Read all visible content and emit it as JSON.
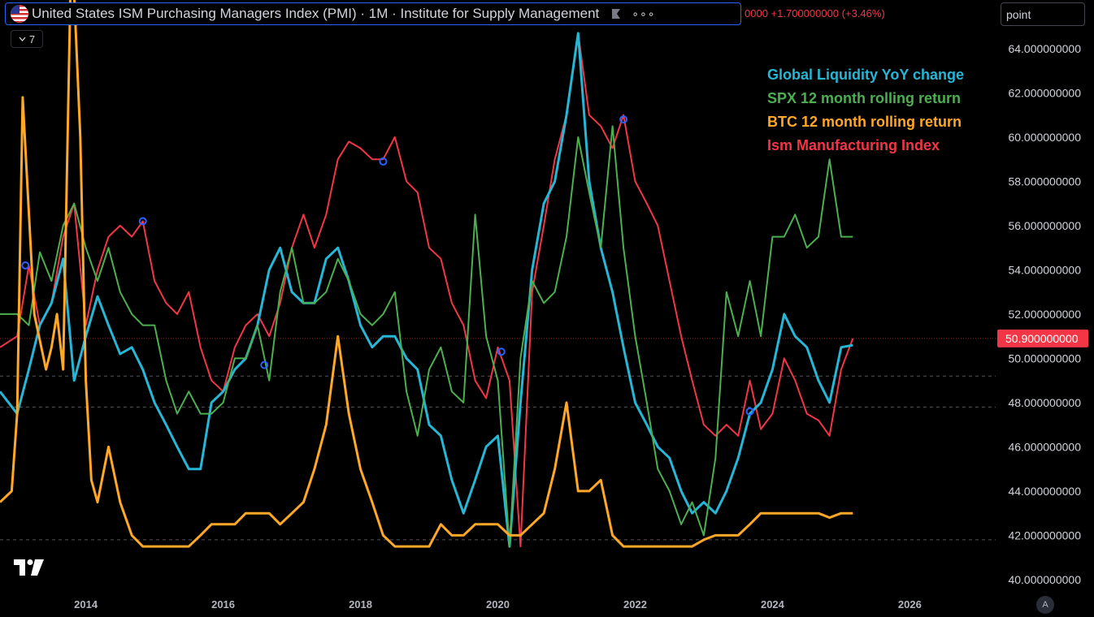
{
  "header": {
    "title": "United States ISM Purchasing Managers Index (PMI) · 1M · Institute for Supply Management",
    "more_label": "∘∘∘",
    "change_text": "0000 +1.700000000 (+3.46%)"
  },
  "search": {
    "value": "point"
  },
  "indicator_toggle": {
    "count": "7"
  },
  "price_tag": "50.900000000",
  "auto_label": "A",
  "colors": {
    "liquidity": "#26b6d6",
    "spx": "#4caf50",
    "btc": "#ffa726",
    "ism": "#f23645",
    "text": "#d1d4dc",
    "accent": "#2962ff"
  },
  "legend": [
    {
      "label": "Global Liquidity YoY change",
      "color": "#26b6d6"
    },
    {
      "label": "SPX 12 month rolling return",
      "color": "#4caf50"
    },
    {
      "label": "BTC 12 month rolling return",
      "color": "#ffa726"
    },
    {
      "label": "Ism Manufacturing Index",
      "color": "#f23645"
    }
  ],
  "chart_data": {
    "type": "line",
    "title": "United States ISM Purchasing Managers Index (PMI) · 1M · Institute for Supply Management",
    "ylim": [
      39.3,
      66.2
    ],
    "xlim": [
      2012.75,
      2027.25
    ],
    "x_ticks": [
      2014,
      2016,
      2018,
      2020,
      2022,
      2024,
      2026
    ],
    "x_tick_labels": [
      "2014",
      "2016",
      "2018",
      "2020",
      "2022",
      "2024",
      "2026"
    ],
    "y_ticks": [
      40,
      42,
      44,
      46,
      48,
      50,
      52,
      54,
      56,
      58,
      60,
      62,
      64
    ],
    "y_tick_labels": [
      "40.000000000",
      "42.000000000",
      "44.000000000",
      "46.000000000",
      "48.000000000",
      "50.000000000",
      "52.000000000",
      "54.000000000",
      "56.000000000",
      "58.000000000",
      "60.000000000",
      "62.000000000",
      "64.000000000"
    ],
    "last_value": 50.9,
    "reference_lines": [
      49.2,
      47.8,
      41.8
    ],
    "series": [
      {
        "name": "Ism Manufacturing Index",
        "color": "#f23645",
        "x": [
          2012.75,
          2013.0,
          2013.17,
          2013.33,
          2013.5,
          2013.67,
          2013.83,
          2014.0,
          2014.17,
          2014.33,
          2014.5,
          2014.67,
          2014.83,
          2015.0,
          2015.17,
          2015.33,
          2015.5,
          2015.67,
          2015.83,
          2016.0,
          2016.17,
          2016.33,
          2016.5,
          2016.67,
          2016.83,
          2017.0,
          2017.17,
          2017.33,
          2017.5,
          2017.67,
          2017.83,
          2018.0,
          2018.17,
          2018.33,
          2018.5,
          2018.67,
          2018.83,
          2019.0,
          2019.17,
          2019.33,
          2019.5,
          2019.67,
          2019.83,
          2020.0,
          2020.17,
          2020.33,
          2020.5,
          2020.67,
          2020.83,
          2021.0,
          2021.17,
          2021.33,
          2021.5,
          2021.67,
          2021.83,
          2022.0,
          2022.17,
          2022.33,
          2022.5,
          2022.67,
          2022.83,
          2023.0,
          2023.17,
          2023.33,
          2023.5,
          2023.67,
          2023.83,
          2024.0,
          2024.17,
          2024.33,
          2024.5,
          2024.67,
          2024.83,
          2025.0,
          2025.17
        ],
        "values": [
          50.5,
          51.0,
          54.2,
          51.5,
          52.5,
          55.5,
          57.0,
          51.5,
          54.0,
          55.5,
          56.0,
          55.5,
          56.2,
          53.5,
          52.5,
          52.0,
          53.0,
          50.5,
          49.0,
          48.5,
          50.5,
          51.5,
          52.0,
          51.0,
          52.5,
          55.0,
          56.5,
          55.0,
          56.5,
          59.0,
          59.8,
          59.5,
          59.0,
          59.0,
          60.0,
          58.0,
          57.5,
          55.0,
          54.5,
          52.5,
          51.5,
          49.0,
          48.2,
          50.5,
          49.0,
          41.5,
          53.0,
          56.0,
          59.0,
          61.0,
          64.7,
          61.0,
          60.5,
          59.5,
          61.0,
          58.0,
          57.0,
          56.0,
          53.5,
          51.0,
          49.0,
          47.0,
          46.5,
          47.0,
          46.5,
          49.0,
          46.8,
          47.5,
          50.0,
          49.0,
          47.5,
          47.2,
          46.5,
          49.5,
          50.9
        ]
      },
      {
        "name": "Global Liquidity YoY change",
        "color": "#26b6d6",
        "x": [
          2012.75,
          2013.0,
          2013.17,
          2013.33,
          2013.5,
          2013.67,
          2013.83,
          2014.0,
          2014.17,
          2014.33,
          2014.5,
          2014.67,
          2014.83,
          2015.0,
          2015.17,
          2015.33,
          2015.5,
          2015.67,
          2015.83,
          2016.0,
          2016.17,
          2016.33,
          2016.5,
          2016.67,
          2016.83,
          2017.0,
          2017.17,
          2017.33,
          2017.5,
          2017.67,
          2017.83,
          2018.0,
          2018.17,
          2018.33,
          2018.5,
          2018.67,
          2018.83,
          2019.0,
          2019.17,
          2019.33,
          2019.5,
          2019.67,
          2019.83,
          2020.0,
          2020.17,
          2020.33,
          2020.5,
          2020.67,
          2020.83,
          2021.0,
          2021.17,
          2021.33,
          2021.5,
          2021.67,
          2021.83,
          2022.0,
          2022.17,
          2022.33,
          2022.5,
          2022.67,
          2022.83,
          2023.0,
          2023.17,
          2023.33,
          2023.5,
          2023.67,
          2023.83,
          2024.0,
          2024.17,
          2024.33,
          2024.5,
          2024.67,
          2024.83,
          2025.0,
          2025.17
        ],
        "values": [
          48.5,
          47.5,
          49.5,
          51.5,
          52.5,
          54.5,
          49.0,
          51.0,
          52.8,
          51.5,
          50.2,
          50.5,
          49.5,
          48.0,
          47.0,
          46.0,
          45.0,
          45.0,
          48.0,
          48.5,
          49.5,
          50.0,
          51.5,
          54.0,
          55.0,
          53.0,
          52.5,
          52.5,
          54.5,
          55.0,
          53.5,
          51.5,
          50.5,
          51.0,
          51.0,
          50.0,
          49.5,
          47.0,
          46.5,
          44.5,
          43.0,
          44.5,
          46.0,
          46.5,
          41.5,
          48.0,
          54.0,
          57.0,
          58.0,
          61.0,
          64.7,
          58.0,
          55.0,
          53.0,
          50.5,
          48.0,
          47.0,
          46.0,
          45.5,
          44.0,
          43.0,
          43.5,
          43.0,
          44.0,
          45.5,
          47.5,
          48.0,
          49.5,
          52.0,
          51.0,
          50.5,
          49.0,
          48.0,
          50.5,
          50.6
        ]
      },
      {
        "name": "SPX 12 month rolling return",
        "color": "#4caf50",
        "x": [
          2012.75,
          2013.0,
          2013.17,
          2013.33,
          2013.5,
          2013.67,
          2013.83,
          2014.0,
          2014.17,
          2014.33,
          2014.5,
          2014.67,
          2014.83,
          2015.0,
          2015.17,
          2015.33,
          2015.5,
          2015.67,
          2015.83,
          2016.0,
          2016.17,
          2016.33,
          2016.5,
          2016.67,
          2016.83,
          2017.0,
          2017.17,
          2017.33,
          2017.5,
          2017.67,
          2017.83,
          2018.0,
          2018.17,
          2018.33,
          2018.5,
          2018.67,
          2018.83,
          2019.0,
          2019.17,
          2019.33,
          2019.5,
          2019.67,
          2019.83,
          2020.0,
          2020.17,
          2020.33,
          2020.5,
          2020.67,
          2020.83,
          2021.0,
          2021.17,
          2021.33,
          2021.5,
          2021.67,
          2021.83,
          2022.0,
          2022.17,
          2022.33,
          2022.5,
          2022.67,
          2022.83,
          2023.0,
          2023.17,
          2023.33,
          2023.5,
          2023.67,
          2023.83,
          2024.0,
          2024.17,
          2024.33,
          2024.5,
          2024.67,
          2024.83,
          2025.0,
          2025.17
        ],
        "values": [
          52.0,
          52.0,
          51.5,
          54.8,
          53.5,
          56.0,
          57.0,
          55.0,
          53.5,
          55.0,
          53.0,
          52.0,
          51.5,
          51.5,
          49.0,
          47.5,
          48.5,
          47.5,
          47.5,
          48.0,
          50.0,
          50.0,
          51.5,
          49.0,
          53.0,
          55.0,
          52.5,
          52.5,
          53.0,
          54.5,
          53.5,
          52.0,
          51.5,
          52.0,
          53.0,
          48.5,
          46.5,
          49.5,
          50.5,
          48.5,
          48.0,
          56.5,
          51.0,
          49.0,
          41.5,
          50.0,
          53.5,
          52.5,
          53.0,
          55.5,
          60.0,
          57.5,
          55.0,
          60.5,
          55.0,
          51.0,
          48.0,
          45.0,
          44.0,
          42.5,
          43.5,
          42.0,
          45.5,
          53.0,
          51.0,
          53.5,
          51.0,
          55.5,
          55.5,
          56.5,
          55.0,
          55.5,
          59.0,
          55.5,
          55.5
        ]
      },
      {
        "name": "BTC 12 month rolling return",
        "color": "#ffa726",
        "x": [
          2012.75,
          2012.92,
          2013.0,
          2013.08,
          2013.25,
          2013.42,
          2013.5,
          2013.58,
          2013.67,
          2013.79,
          2013.83,
          2013.92,
          2014.0,
          2014.08,
          2014.17,
          2014.33,
          2014.5,
          2014.67,
          2014.83,
          2015.0,
          2015.17,
          2015.33,
          2015.5,
          2015.67,
          2015.83,
          2016.0,
          2016.17,
          2016.33,
          2016.5,
          2016.67,
          2016.83,
          2017.0,
          2017.17,
          2017.33,
          2017.5,
          2017.67,
          2017.83,
          2018.0,
          2018.17,
          2018.33,
          2018.5,
          2018.67,
          2018.83,
          2019.0,
          2019.17,
          2019.33,
          2019.5,
          2019.67,
          2019.83,
          2020.0,
          2020.17,
          2020.33,
          2020.5,
          2020.67,
          2020.83,
          2021.0,
          2021.17,
          2021.33,
          2021.5,
          2021.67,
          2021.83,
          2022.0,
          2022.17,
          2022.33,
          2022.5,
          2022.67,
          2022.83,
          2023.0,
          2023.17,
          2023.33,
          2023.5,
          2023.67,
          2023.83,
          2024.0,
          2024.17,
          2024.33,
          2024.5,
          2024.67,
          2024.83,
          2025.0,
          2025.17
        ],
        "values": [
          43.5,
          44.0,
          47.5,
          61.8,
          52.0,
          49.5,
          50.5,
          52.0,
          49.5,
          69.0,
          66.5,
          60.0,
          49.0,
          44.5,
          43.5,
          46.0,
          43.5,
          42.0,
          41.5,
          41.5,
          41.5,
          41.5,
          41.5,
          42.0,
          42.5,
          42.5,
          42.5,
          43.0,
          43.0,
          43.0,
          42.5,
          43.0,
          43.5,
          45.0,
          47.0,
          51.0,
          47.5,
          45.0,
          43.5,
          42.0,
          41.5,
          41.5,
          41.5,
          41.5,
          42.5,
          42.0,
          42.0,
          42.5,
          42.5,
          42.5,
          42.0,
          42.0,
          42.5,
          43.0,
          45.0,
          48.0,
          44.0,
          44.0,
          44.5,
          42.0,
          41.5,
          41.5,
          41.5,
          41.5,
          41.5,
          41.5,
          41.5,
          41.8,
          42.0,
          42.0,
          42.0,
          42.5,
          43.0,
          43.0,
          43.0,
          43.0,
          43.0,
          43.0,
          42.8,
          43.0,
          43.0
        ]
      }
    ],
    "markers": [
      {
        "x": 2013.12,
        "y": 54.2
      },
      {
        "x": 2014.83,
        "y": 56.2
      },
      {
        "x": 2016.6,
        "y": 49.7
      },
      {
        "x": 2018.33,
        "y": 58.9
      },
      {
        "x": 2020.05,
        "y": 50.3
      },
      {
        "x": 2021.83,
        "y": 60.8
      },
      {
        "x": 2023.67,
        "y": 47.6
      }
    ]
  }
}
